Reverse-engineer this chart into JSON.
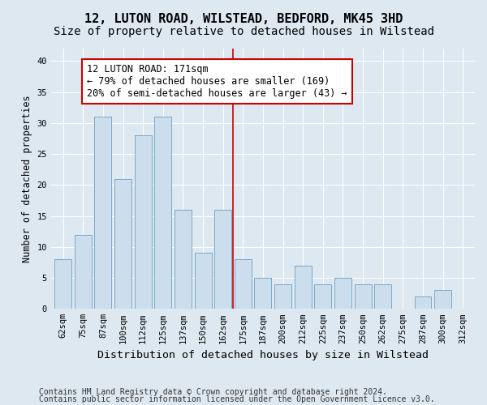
{
  "title": "12, LUTON ROAD, WILSTEAD, BEDFORD, MK45 3HD",
  "subtitle": "Size of property relative to detached houses in Wilstead",
  "xlabel": "Distribution of detached houses by size in Wilstead",
  "ylabel": "Number of detached properties",
  "categories": [
    "62sqm",
    "75sqm",
    "87sqm",
    "100sqm",
    "112sqm",
    "125sqm",
    "137sqm",
    "150sqm",
    "162sqm",
    "175sqm",
    "187sqm",
    "200sqm",
    "212sqm",
    "225sqm",
    "237sqm",
    "250sqm",
    "262sqm",
    "275sqm",
    "287sqm",
    "300sqm",
    "312sqm"
  ],
  "values": [
    8,
    12,
    31,
    21,
    28,
    31,
    16,
    9,
    16,
    8,
    5,
    4,
    7,
    4,
    5,
    4,
    4,
    0,
    2,
    3,
    0
  ],
  "bar_color": "#ccdded",
  "bar_edge_color": "#7aaac8",
  "vline_x": 8.5,
  "vline_color": "#cc0000",
  "annotation_text": "12 LUTON ROAD: 171sqm\n← 79% of detached houses are smaller (169)\n20% of semi-detached houses are larger (43) →",
  "annotation_box_facecolor": "#ffffff",
  "annotation_box_edgecolor": "#cc0000",
  "ylim": [
    0,
    42
  ],
  "yticks": [
    0,
    5,
    10,
    15,
    20,
    25,
    30,
    35,
    40
  ],
  "background_color": "#dde8f0",
  "plot_background_color": "#dde8f0",
  "footer1": "Contains HM Land Registry data © Crown copyright and database right 2024.",
  "footer2": "Contains public sector information licensed under the Open Government Licence v3.0.",
  "title_fontsize": 11,
  "subtitle_fontsize": 10,
  "xlabel_fontsize": 9.5,
  "ylabel_fontsize": 8.5,
  "tick_fontsize": 7.5,
  "annotation_fontsize": 8.5,
  "footer_fontsize": 7
}
